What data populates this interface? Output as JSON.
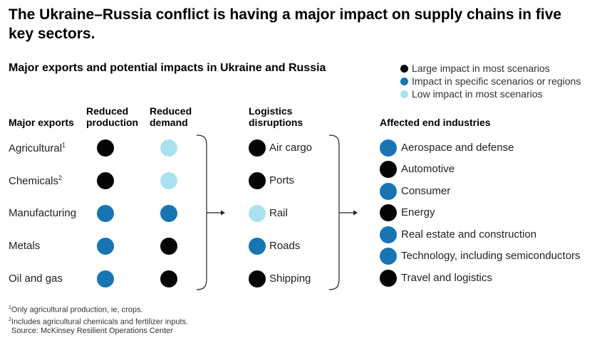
{
  "title": "The Ukraine–Russia conflict is having a major impact on supply chains in five key sectors.",
  "subtitle": "Major exports and potential impacts in Ukraine and Russia",
  "colors": {
    "large": "#050505",
    "specific": "#1775b4",
    "low": "#a8e2ee"
  },
  "legend": [
    {
      "level": "large",
      "label": "Large impact in most scenarios"
    },
    {
      "level": "specific",
      "label": "Impact in specific scenarios or regions"
    },
    {
      "level": "low",
      "label": "Low impact in most scenarios"
    }
  ],
  "columns": {
    "exports": "Major exports",
    "production_line1": "Reduced",
    "production_line2": "production",
    "demand_line1": "Reduced",
    "demand_line2": "demand",
    "logistics_line1": "Logistics",
    "logistics_line2": "disruptions",
    "industries": "Affected end industries"
  },
  "exports": [
    {
      "label": "Agricultural",
      "note": "1",
      "production": "large",
      "demand": "low"
    },
    {
      "label": "Chemicals",
      "note": "2",
      "production": "large",
      "demand": "low"
    },
    {
      "label": "Manufacturing",
      "note": "",
      "production": "specific",
      "demand": "specific"
    },
    {
      "label": "Metals",
      "note": "",
      "production": "specific",
      "demand": "large"
    },
    {
      "label": "Oil and gas",
      "note": "",
      "production": "specific",
      "demand": "large"
    }
  ],
  "logistics": [
    {
      "label": "Air cargo",
      "level": "large"
    },
    {
      "label": "Ports",
      "level": "large"
    },
    {
      "label": "Rail",
      "level": "low"
    },
    {
      "label": "Roads",
      "level": "specific"
    },
    {
      "label": "Shipping",
      "level": "large"
    }
  ],
  "industries": [
    {
      "label": "Aerospace and defense",
      "level": "specific"
    },
    {
      "label": "Automotive",
      "level": "large"
    },
    {
      "label": "Consumer",
      "level": "specific"
    },
    {
      "label": "Energy",
      "level": "large"
    },
    {
      "label": "Real estate and construction",
      "level": "specific"
    },
    {
      "label": "Technology, including semiconductors",
      "level": "specific"
    },
    {
      "label": "Travel and logistics",
      "level": "large"
    }
  ],
  "footnotes": [
    {
      "mark": "1",
      "text": "Only agricultural production, ie, crops."
    },
    {
      "mark": "2",
      "text": "Includes agricultural chemicals and fertilizer inputs."
    }
  ],
  "source": "Source: McKinsey Resilient Operations Center"
}
